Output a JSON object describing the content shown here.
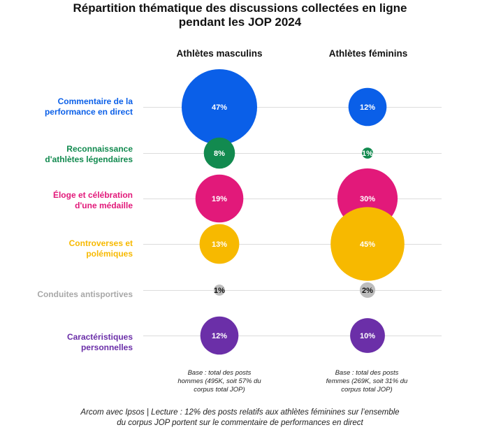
{
  "chart_data": {
    "type": "bubble",
    "title_lines": [
      "Répartition thématique des discussions collectées en ligne",
      "pendant les JOP 2024"
    ],
    "columns": [
      "Athlètes masculins",
      "Athlètes féminins"
    ],
    "categories": [
      {
        "label_lines": [
          "Commentaire de la",
          "performance en direct"
        ],
        "color": "#0a5fe8",
        "values": [
          47,
          12
        ],
        "value_labels": [
          "47%",
          "12%"
        ]
      },
      {
        "label_lines": [
          "Reconnaissance",
          "d'athlètes légendaires"
        ],
        "color": "#128a4f",
        "values": [
          8,
          1
        ],
        "value_labels": [
          "8%",
          "1%"
        ]
      },
      {
        "label_lines": [
          "Éloge et célébration",
          "d'une médaille"
        ],
        "color": "#e2197a",
        "values": [
          19,
          30
        ],
        "value_labels": [
          "19%",
          "30%"
        ]
      },
      {
        "label_lines": [
          "Controverses et",
          "polémiques"
        ],
        "color": "#f7b900",
        "values": [
          13,
          45
        ],
        "value_labels": [
          "13%",
          "45%"
        ]
      },
      {
        "label_lines": [
          "Conduites antisportives"
        ],
        "color": "#bdbdbd",
        "values": [
          1,
          2
        ],
        "value_labels": [
          "1%",
          "2%"
        ]
      },
      {
        "label_lines": [
          "Caractéristiques",
          "personnelles"
        ],
        "color": "#6b2fa8",
        "values": [
          12,
          10
        ],
        "value_labels": [
          "12%",
          "10%"
        ]
      }
    ],
    "base_notes": [
      [
        "Base : total des posts",
        "hommes (495K, soit 57% du",
        "corpus total JOP)"
      ],
      [
        "Base : total des posts",
        "femmes (269K, soit 31% du",
        "corpus total JOP)"
      ]
    ],
    "footer_lines": [
      "Arcom avec Ipsos | Lecture : 12% des posts relatifs aux athlètes féminines sur l’ensemble",
      "du corpus JOP portent sur le commentaire de performances en direct"
    ]
  }
}
